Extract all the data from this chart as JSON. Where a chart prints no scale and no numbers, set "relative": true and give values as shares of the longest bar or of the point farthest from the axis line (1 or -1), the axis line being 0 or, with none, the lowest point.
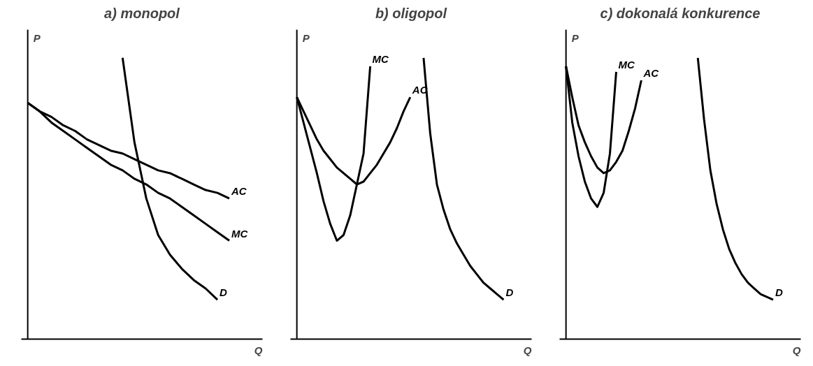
{
  "chart_data": [
    {
      "type": "line",
      "title": "a) monopol",
      "xlabel": "Q",
      "ylabel": "P",
      "relative": true,
      "categories": [
        null,
        null,
        null,
        null,
        null,
        null,
        null,
        null,
        null,
        null,
        null,
        null,
        null,
        null,
        null,
        null,
        null,
        null
      ],
      "series": [
        {
          "name": "AC",
          "color": "#000000",
          "values": [
            0.84,
            0.81,
            0.79,
            0.76,
            0.74,
            0.71,
            0.69,
            0.67,
            0.66,
            0.64,
            0.62,
            0.6,
            0.59,
            0.57,
            0.55,
            0.53,
            0.52,
            0.5
          ]
        },
        {
          "name": "MC",
          "color": "#000000",
          "values": [
            0.84,
            0.81,
            0.77,
            0.74,
            0.71,
            0.68,
            0.65,
            0.62,
            0.6,
            0.57,
            0.55,
            0.52,
            0.5,
            0.47,
            0.44,
            0.41,
            0.38,
            0.35
          ]
        },
        {
          "name": "D",
          "color": "#000000",
          "values": [
            null,
            null,
            null,
            null,
            null,
            null,
            null,
            null,
            1.0,
            0.7,
            0.5,
            0.37,
            0.3,
            0.25,
            0.21,
            0.18,
            0.14,
            null
          ]
        }
      ]
    },
    {
      "type": "line",
      "title": "b) oligopol",
      "xlabel": "Q",
      "ylabel": "P",
      "relative": true,
      "categories": [
        null,
        null,
        null,
        null,
        null,
        null,
        null,
        null,
        null,
        null,
        null,
        null,
        null,
        null,
        null,
        null,
        null,
        null,
        null,
        null,
        null,
        null,
        null,
        null,
        null,
        null,
        null,
        null,
        null,
        null,
        null,
        null
      ],
      "series": [
        {
          "name": "MC",
          "color": "#000000",
          "values": [
            0.86,
            0.77,
            0.68,
            0.59,
            0.49,
            0.41,
            0.35,
            0.37,
            0.44,
            0.55,
            0.66,
            0.97,
            null,
            null,
            null,
            null,
            null,
            null,
            null,
            null,
            null,
            null,
            null,
            null,
            null,
            null,
            null,
            null,
            null,
            null,
            null,
            null
          ]
        },
        {
          "name": "AC",
          "color": "#000000",
          "values": [
            0.86,
            0.81,
            0.76,
            0.71,
            0.67,
            0.64,
            0.61,
            0.59,
            0.57,
            0.55,
            0.56,
            0.59,
            0.62,
            0.66,
            0.7,
            0.75,
            0.81,
            0.86,
            null,
            null,
            null,
            null,
            null,
            null,
            null,
            null,
            null,
            null,
            null,
            null,
            null,
            null
          ]
        },
        {
          "name": "D",
          "color": "#000000",
          "values": [
            null,
            null,
            null,
            null,
            null,
            null,
            null,
            null,
            null,
            null,
            null,
            null,
            null,
            null,
            null,
            null,
            null,
            null,
            null,
            1.0,
            0.73,
            0.55,
            0.46,
            0.39,
            0.34,
            0.3,
            0.26,
            0.23,
            0.2,
            0.18,
            0.16,
            0.14
          ]
        }
      ]
    },
    {
      "type": "line",
      "title": "c) dokonalá konkurence",
      "xlabel": "Q",
      "ylabel": "P",
      "relative": true,
      "categories": [
        null,
        null,
        null,
        null,
        null,
        null,
        null,
        null,
        null,
        null,
        null,
        null,
        null,
        null,
        null,
        null,
        null,
        null,
        null,
        null,
        null,
        null,
        null,
        null,
        null,
        null,
        null,
        null,
        null,
        null,
        null,
        null,
        null,
        null
      ],
      "series": [
        {
          "name": "MC",
          "color": "#000000",
          "values": [
            0.97,
            0.77,
            0.65,
            0.56,
            0.5,
            0.47,
            0.52,
            0.66,
            0.95,
            null,
            null,
            null,
            null,
            null,
            null,
            null,
            null,
            null,
            null,
            null,
            null,
            null,
            null,
            null,
            null,
            null,
            null,
            null,
            null,
            null,
            null,
            null,
            null,
            null
          ]
        },
        {
          "name": "AC",
          "color": "#000000",
          "values": [
            0.97,
            0.86,
            0.76,
            0.7,
            0.65,
            0.61,
            0.59,
            0.6,
            0.63,
            0.67,
            0.74,
            0.82,
            0.92,
            null,
            null,
            null,
            null,
            null,
            null,
            null,
            null,
            null,
            null,
            null,
            null,
            null,
            null,
            null,
            null,
            null,
            null,
            null,
            null,
            null
          ]
        },
        {
          "name": "D",
          "color": "#000000",
          "values": [
            null,
            null,
            null,
            null,
            null,
            null,
            null,
            null,
            null,
            null,
            null,
            null,
            null,
            null,
            null,
            null,
            null,
            null,
            null,
            null,
            null,
            1.0,
            0.78,
            0.6,
            0.48,
            0.39,
            0.32,
            0.27,
            0.23,
            0.2,
            0.18,
            0.16,
            0.15,
            0.14
          ]
        }
      ]
    }
  ]
}
